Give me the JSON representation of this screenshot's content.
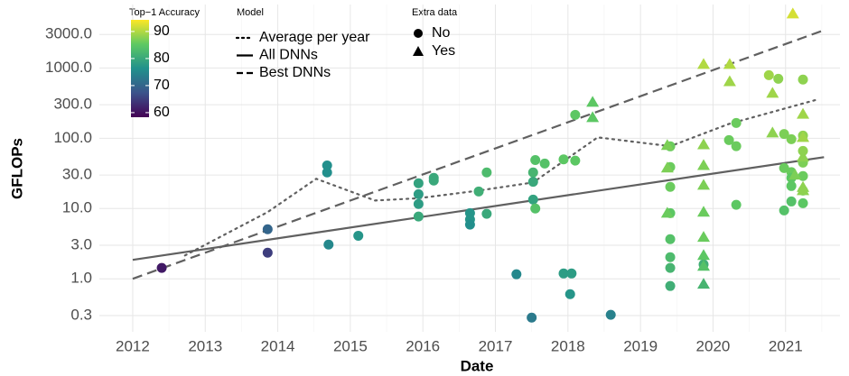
{
  "chart_data": {
    "type": "scatter",
    "x_label": "Date",
    "y_label": "GFLOPs",
    "log_y": true,
    "grid": true,
    "xlim": [
      2011.54,
      2021.75
    ],
    "ylim": [
      0.176,
      8000
    ],
    "xticks": [
      2012,
      2013,
      2014,
      2015,
      2016,
      2017,
      2018,
      2019,
      2020,
      2021
    ],
    "yticks": [
      0.3,
      {
        "value": 1,
        "label": "1.0"
      },
      {
        "value": 3,
        "label": "3.0"
      },
      {
        "value": 10,
        "label": "10.0"
      },
      {
        "value": 30,
        "label": "30.0"
      },
      {
        "value": 100,
        "label": "100.0"
      },
      {
        "value": 300,
        "label": "300.0"
      },
      {
        "value": 1000,
        "label": "1000.0"
      },
      {
        "value": 3000,
        "label": "3000.0"
      }
    ],
    "colorbar": {
      "title": "Top−1 Accuracy",
      "lim": [
        58.3,
        94.3
      ],
      "ticks": [
        60,
        70,
        80,
        90
      ],
      "colorscale": [
        "#440154",
        "#3b528b",
        "#21918c",
        "#5ec962",
        "#fde725"
      ]
    },
    "shape_legend_title": "Extra data",
    "line_legend_title": "Model",
    "series": [
      {
        "name": "No",
        "marker": "circle",
        "x": [
          2012.4,
          2013.86,
          2013.86,
          2014.68,
          2014.68,
          2014.7,
          2015.11,
          2015.94,
          2015.94,
          2015.94,
          2015.94,
          2016.15,
          2016.15,
          2016.65,
          2016.65,
          2016.65,
          2016.77,
          2016.88,
          2016.88,
          2017.29,
          2017.5,
          2017.52,
          2017.52,
          2017.52,
          2017.55,
          2017.55,
          2017.68,
          2017.94,
          2018.1,
          2018.1,
          2017.94,
          2018.05,
          2018.03,
          2018.59,
          2019.41,
          2019.41,
          2019.41,
          2019.41,
          2019.41,
          2019.41,
          2019.41,
          2019.41,
          2019.87,
          2020.22,
          2020.32,
          2020.32,
          2020.32,
          2020.77,
          2020.9,
          2020.98,
          2021.08,
          2020.98,
          2021.08,
          2021.08,
          2021.08,
          2021.08,
          2020.98,
          2021.24,
          2021.24,
          2021.24,
          2021.24,
          2021.24,
          2021.24,
          2021.24
        ],
        "values": [
          1.43,
          5.07,
          2.35,
          41,
          32.6,
          3.07,
          4.1,
          22.9,
          16,
          11.6,
          7.7,
          27.3,
          25,
          8.6,
          7.0,
          5.9,
          17.5,
          8.4,
          32.6,
          1.16,
          0.28,
          32.6,
          24,
          13.4,
          10,
          49,
          43.6,
          50,
          48,
          215,
          1.19,
          1.19,
          0.605,
          0.307,
          76.7,
          38.9,
          20.3,
          8.6,
          3.66,
          2.03,
          1.43,
          0.79,
          1.6,
          94,
          165,
          77,
          11.3,
          789,
          702,
          115,
          97,
          37.7,
          33,
          27.3,
          20.9,
          12.6,
          9.4,
          684,
          109,
          66,
          45,
          29,
          18,
          11.9
        ],
        "accuracy": [
          61,
          70,
          65,
          76,
          76,
          75,
          77,
          79,
          78,
          78,
          80,
          80,
          80,
          77,
          77,
          76,
          81,
          80,
          83,
          75,
          73,
          82,
          80,
          79,
          84,
          84,
          84,
          85,
          85,
          85,
          78,
          78,
          77,
          74,
          86,
          86,
          86,
          85,
          84,
          83,
          82,
          81,
          81,
          86,
          86,
          86,
          85,
          89,
          88,
          87,
          87,
          86,
          86,
          85,
          85,
          84,
          84,
          88,
          88,
          88,
          87,
          86,
          86,
          85
        ]
      },
      {
        "name": "Yes",
        "marker": "triangle",
        "x": [
          2018.34,
          2018.34,
          2019.37,
          2019.37,
          2019.37,
          2019.87,
          2020.23,
          2020.23,
          2019.87,
          2019.87,
          2019.87,
          2019.87,
          2019.87,
          2019.87,
          2019.87,
          2019.87,
          2020.82,
          2020.82,
          2021.1,
          2021.24,
          2021.24,
          2021.24,
          2021.24,
          2021.13,
          2021.24
        ],
        "values": [
          326,
          197,
          79,
          37.8,
          8.6,
          1126,
          1126,
          640,
          81,
          41,
          21.5,
          8.9,
          3.9,
          2.15,
          1.51,
          0.84,
          437,
          119,
          5880,
          220,
          103,
          54,
          18,
          30,
          20
        ],
        "accuracy": [
          85,
          85,
          87,
          87,
          86,
          90,
          90,
          89,
          88,
          87,
          87,
          86,
          86,
          85,
          84,
          82,
          89,
          88,
          92,
          89,
          89,
          88,
          88,
          87,
          88
        ]
      }
    ],
    "lines": [
      {
        "name": "Average per year",
        "style": "dotted",
        "color": "#606060",
        "x": [
          2012.72,
          2013.86,
          2014.53,
          2015.34,
          2015.94,
          2016.77,
          2017.52,
          2018.41,
          2019.41,
          2020.22,
          2021.44
        ],
        "values": [
          2.15,
          8.9,
          26.5,
          13,
          14,
          18,
          23.5,
          103,
          77,
          160,
          356
        ]
      },
      {
        "name": "All DNNs",
        "style": "solid",
        "color": "#606060",
        "x": [
          2012,
          2021.53
        ],
        "values": [
          1.86,
          53.8
        ]
      },
      {
        "name": "Best DNNs",
        "style": "dashed",
        "color": "#606060",
        "x": [
          2012,
          2021.53
        ],
        "values": [
          1.0,
          3450
        ]
      }
    ]
  }
}
